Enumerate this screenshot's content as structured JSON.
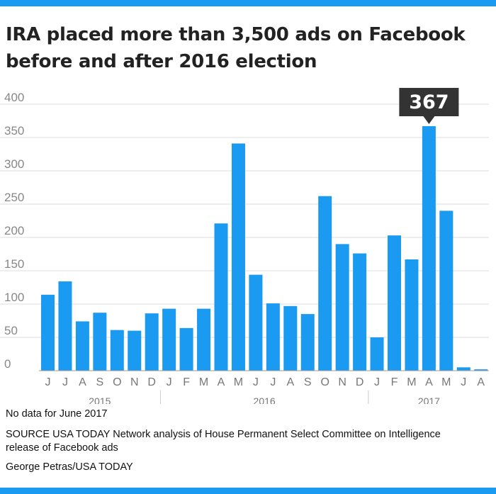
{
  "title": "IRA placed more than 3,500 ads on Facebook before and after 2016 election",
  "footnote": "No data for June 2017",
  "source": "SOURCE USA TODAY Network analysis of House Permanent Select Committee on Intelligence release of Facebook ads",
  "credit": "George Petras/USA TODAY",
  "colors": {
    "accent": "#1a9af0",
    "bar": "#1a9af0",
    "callout": "#333333"
  },
  "chart_data": {
    "type": "bar",
    "categories": [
      "J",
      "J",
      "A",
      "S",
      "O",
      "N",
      "D",
      "J",
      "F",
      "M",
      "A",
      "M",
      "J",
      "J",
      "A",
      "S",
      "O",
      "N",
      "D",
      "J",
      "F",
      "M",
      "A",
      "M",
      "J",
      "A"
    ],
    "values": [
      114,
      134,
      74,
      87,
      61,
      60,
      86,
      93,
      64,
      93,
      221,
      341,
      144,
      101,
      97,
      85,
      262,
      190,
      176,
      50,
      203,
      167,
      367,
      240,
      5,
      2
    ],
    "year_groups": [
      {
        "label": "2015",
        "from": 0,
        "to": 6
      },
      {
        "label": "2016",
        "from": 7,
        "to": 18
      },
      {
        "label": "2017",
        "from": 19,
        "to": 25
      }
    ],
    "ylim": [
      0,
      400
    ],
    "yticks": [
      0,
      50,
      100,
      150,
      200,
      250,
      300,
      350,
      400
    ],
    "grid": true,
    "callout": {
      "index": 22,
      "label": "367"
    }
  }
}
